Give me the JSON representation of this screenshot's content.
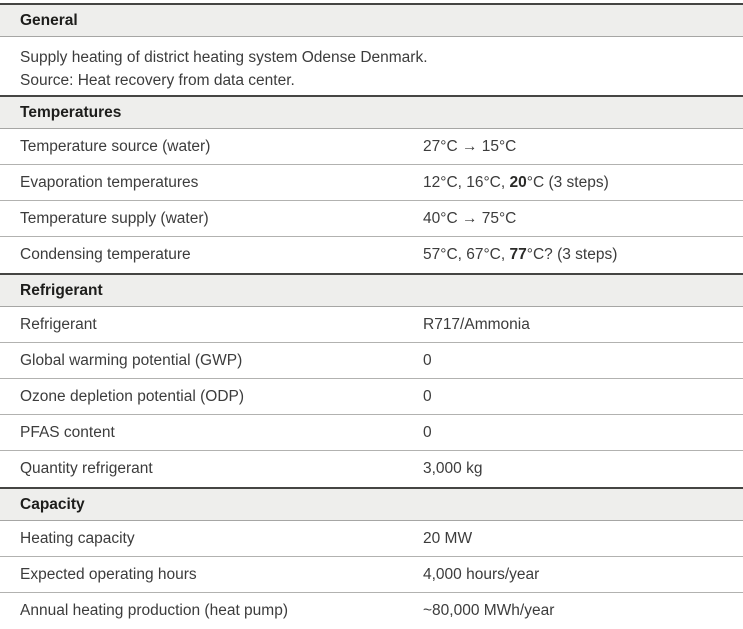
{
  "document": {
    "sections": [
      {
        "title": "General",
        "description_lines": [
          "Supply heating of district heating system Odense Denmark.",
          "Source: Heat recovery from data center."
        ]
      },
      {
        "title": "Temperatures",
        "rows": [
          {
            "label": "Temperature source (water)",
            "parts": [
              {
                "text": "27°C → 15°C",
                "bold": false
              }
            ]
          },
          {
            "label": "Evaporation temperatures",
            "parts": [
              {
                "text": "12°C, 16°C, ",
                "bold": false
              },
              {
                "text": "20",
                "bold": true
              },
              {
                "text": "°C (3 steps)",
                "bold": false
              }
            ]
          },
          {
            "label": "Temperature supply (water)",
            "parts": [
              {
                "text": "40°C → 75°C",
                "bold": false
              }
            ]
          },
          {
            "label": "Condensing temperature",
            "parts": [
              {
                "text": "57°C, 67°C, ",
                "bold": false
              },
              {
                "text": "77",
                "bold": true
              },
              {
                "text": "°C? (3 steps)",
                "bold": false
              }
            ]
          }
        ]
      },
      {
        "title": "Refrigerant",
        "rows": [
          {
            "label": "Refrigerant",
            "parts": [
              {
                "text": "R717/Ammonia",
                "bold": false
              }
            ]
          },
          {
            "label": "Global warming potential (GWP)",
            "parts": [
              {
                "text": "0",
                "bold": false
              }
            ]
          },
          {
            "label": "Ozone depletion potential (ODP)",
            "parts": [
              {
                "text": "0",
                "bold": false
              }
            ]
          },
          {
            "label": "PFAS content",
            "parts": [
              {
                "text": "0",
                "bold": false
              }
            ]
          },
          {
            "label": "Quantity refrigerant",
            "parts": [
              {
                "text": "3,000 kg",
                "bold": false
              }
            ]
          }
        ]
      },
      {
        "title": "Capacity",
        "rows": [
          {
            "label": "Heating capacity",
            "parts": [
              {
                "text": "20 MW",
                "bold": false
              }
            ]
          },
          {
            "label": "Expected operating hours",
            "parts": [
              {
                "text": "4,000 hours/year",
                "bold": false
              }
            ]
          },
          {
            "label": "Annual heating production (heat pump)",
            "parts": [
              {
                "text": "~80,000 MWh/year",
                "bold": false
              }
            ]
          }
        ]
      }
    ]
  },
  "colors": {
    "header_background": "#eeeeec",
    "header_top_border": "#454543",
    "header_bottom_border": "#a6a6a4",
    "row_divider": "#b2b2b0",
    "body_text": "#3c3c3c",
    "heading_text": "#1d1d1b"
  }
}
